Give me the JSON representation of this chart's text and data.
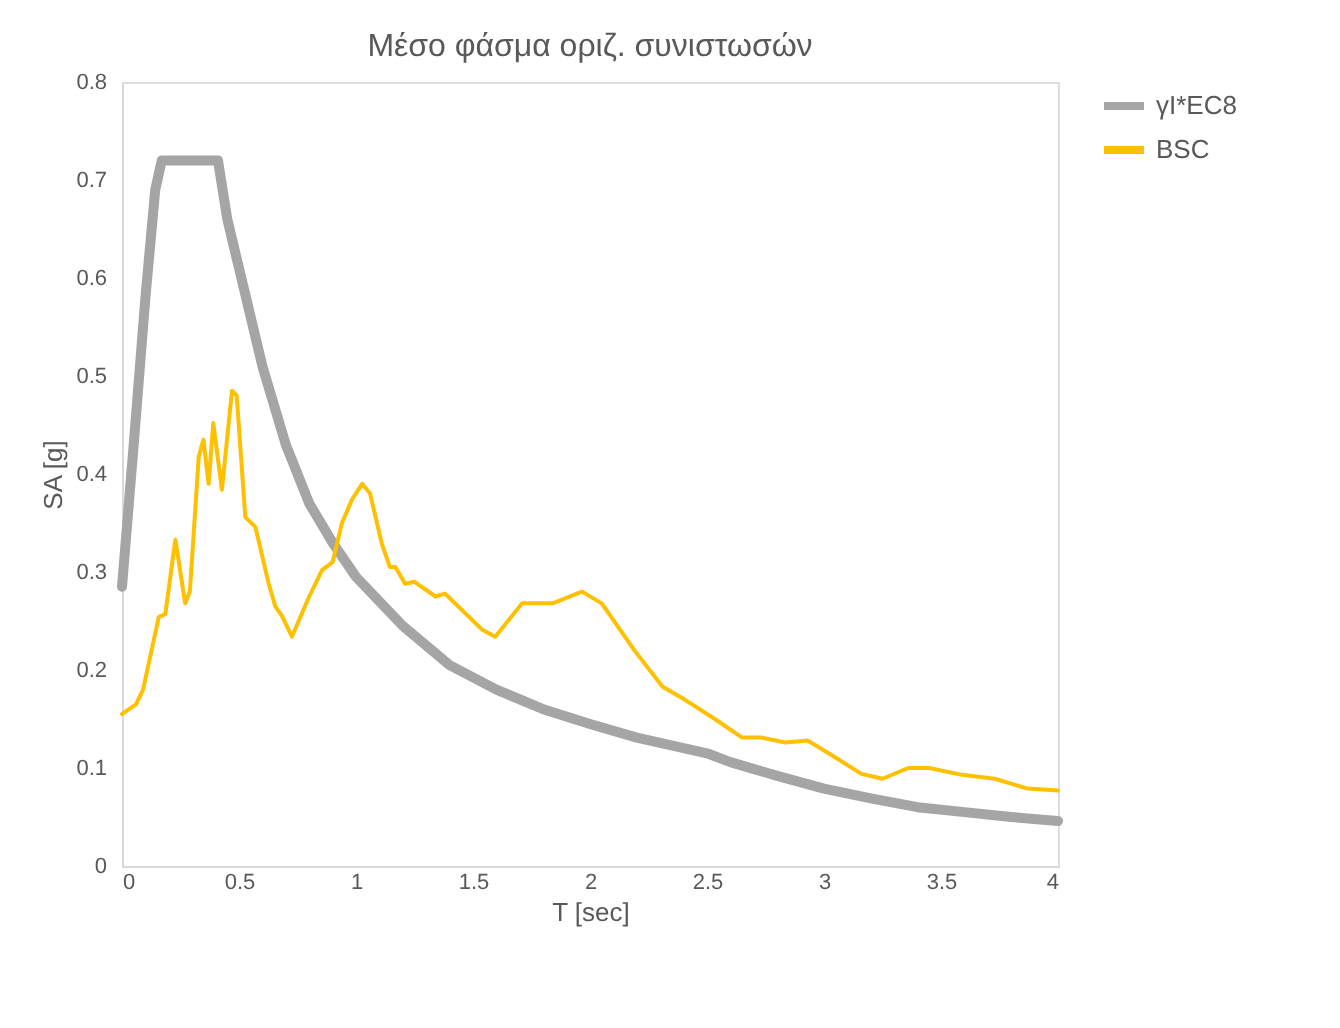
{
  "chart_data": {
    "type": "line",
    "title": "Μέσο φάσμα οριζ. συνιστωσών",
    "xlabel": "T [sec]",
    "ylabel": "SA [g]",
    "xlim": [
      0,
      4
    ],
    "xticks": [
      0,
      0.5,
      1,
      1.5,
      2,
      2.5,
      3,
      3.5,
      4
    ],
    "ylim": [
      0,
      0.8
    ],
    "yticks": [
      0,
      0.1,
      0.2,
      0.3,
      0.4,
      0.5,
      0.6,
      0.7,
      0.8
    ],
    "grid": false,
    "legend": "right",
    "series": [
      {
        "name": "γI*EC8",
        "color": "#a5a5a5",
        "x": [
          0,
          0.05,
          0.1,
          0.142,
          0.17,
          0.41,
          0.45,
          0.5,
          0.6,
          0.7,
          0.8,
          0.9,
          1.0,
          1.2,
          1.4,
          1.6,
          1.8,
          2.0,
          2.2,
          2.5,
          2.6,
          2.8,
          3.0,
          3.2,
          3.4,
          3.6,
          3.8,
          4.0
        ],
        "values": [
          0.285,
          0.43,
          0.58,
          0.69,
          0.72,
          0.72,
          0.66,
          0.61,
          0.51,
          0.43,
          0.37,
          0.33,
          0.295,
          0.245,
          0.205,
          0.18,
          0.16,
          0.145,
          0.131,
          0.115,
          0.106,
          0.092,
          0.079,
          0.069,
          0.06,
          0.055,
          0.05,
          0.046
        ]
      },
      {
        "name": "BSC",
        "color": "#ffc000",
        "x": [
          0,
          0.03,
          0.06,
          0.09,
          0.157,
          0.185,
          0.228,
          0.27,
          0.29,
          0.328,
          0.348,
          0.37,
          0.39,
          0.427,
          0.47,
          0.49,
          0.527,
          0.57,
          0.627,
          0.655,
          0.684,
          0.726,
          0.8,
          0.855,
          0.9,
          0.94,
          0.983,
          1.026,
          1.06,
          1.11,
          1.145,
          1.168,
          1.21,
          1.25,
          1.34,
          1.38,
          1.54,
          1.595,
          1.71,
          1.84,
          1.966,
          2.05,
          2.19,
          2.31,
          2.39,
          2.54,
          2.65,
          2.735,
          2.835,
          2.93,
          3.02,
          3.16,
          3.25,
          3.36,
          3.45,
          3.59,
          3.73,
          3.87,
          4.0
        ],
        "values": [
          0.155,
          0.16,
          0.165,
          0.18,
          0.254,
          0.257,
          0.333,
          0.268,
          0.28,
          0.418,
          0.435,
          0.39,
          0.452,
          0.384,
          0.485,
          0.48,
          0.356,
          0.346,
          0.288,
          0.265,
          0.255,
          0.234,
          0.275,
          0.302,
          0.31,
          0.35,
          0.374,
          0.39,
          0.38,
          0.329,
          0.305,
          0.305,
          0.288,
          0.29,
          0.275,
          0.278,
          0.241,
          0.234,
          0.268,
          0.268,
          0.28,
          0.268,
          0.22,
          0.183,
          0.172,
          0.149,
          0.131,
          0.131,
          0.126,
          0.128,
          0.115,
          0.094,
          0.089,
          0.1,
          0.1,
          0.093,
          0.089,
          0.079,
          0.077
        ]
      }
    ]
  }
}
